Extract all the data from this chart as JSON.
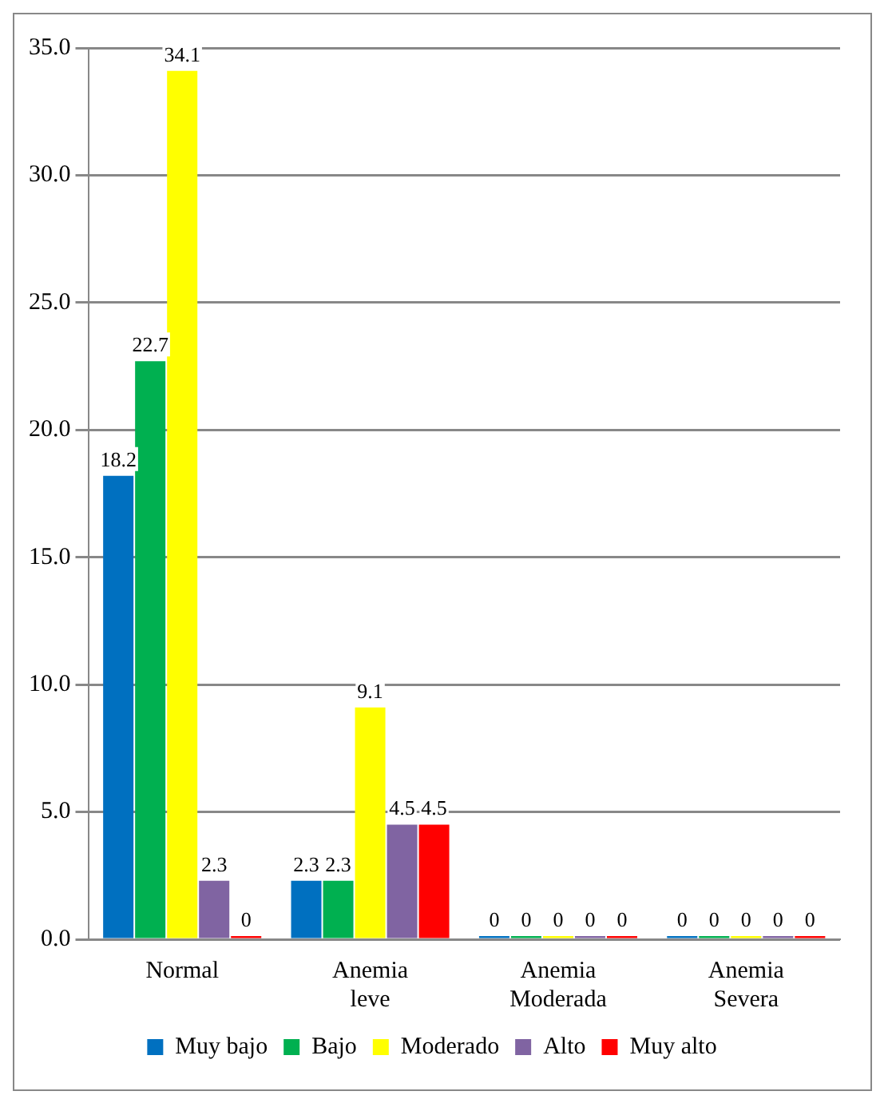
{
  "chart_data": {
    "type": "bar",
    "categories": [
      "Normal",
      "Anemia leve",
      "Anemia Moderada",
      "Anemia Severa"
    ],
    "series": [
      {
        "name": "Muy bajo",
        "color": "#0070c0",
        "values": [
          18.2,
          2.3,
          0,
          0
        ]
      },
      {
        "name": "Bajo",
        "color": "#00b050",
        "values": [
          22.7,
          2.3,
          0,
          0
        ]
      },
      {
        "name": "Moderado",
        "color": "#ffff00",
        "values": [
          34.1,
          9.1,
          0,
          0
        ]
      },
      {
        "name": "Alto",
        "color": "#8064a2",
        "values": [
          2.3,
          4.5,
          0,
          0
        ]
      },
      {
        "name": "Muy alto",
        "color": "#ff0000",
        "values": [
          0,
          4.5,
          0,
          0
        ]
      }
    ],
    "ylim": [
      0,
      35
    ],
    "yticks": [
      {
        "value": 0,
        "label": "0.0"
      },
      {
        "value": 5,
        "label": "5.0"
      },
      {
        "value": 10,
        "label": "10.0"
      },
      {
        "value": 15,
        "label": "15.0"
      },
      {
        "value": 20,
        "label": "20.0"
      },
      {
        "value": 25,
        "label": "25.0"
      },
      {
        "value": 30,
        "label": "30.0"
      },
      {
        "value": 35,
        "label": "35.0"
      }
    ],
    "grid": "y",
    "legend": "bottom",
    "data_labels": true
  }
}
